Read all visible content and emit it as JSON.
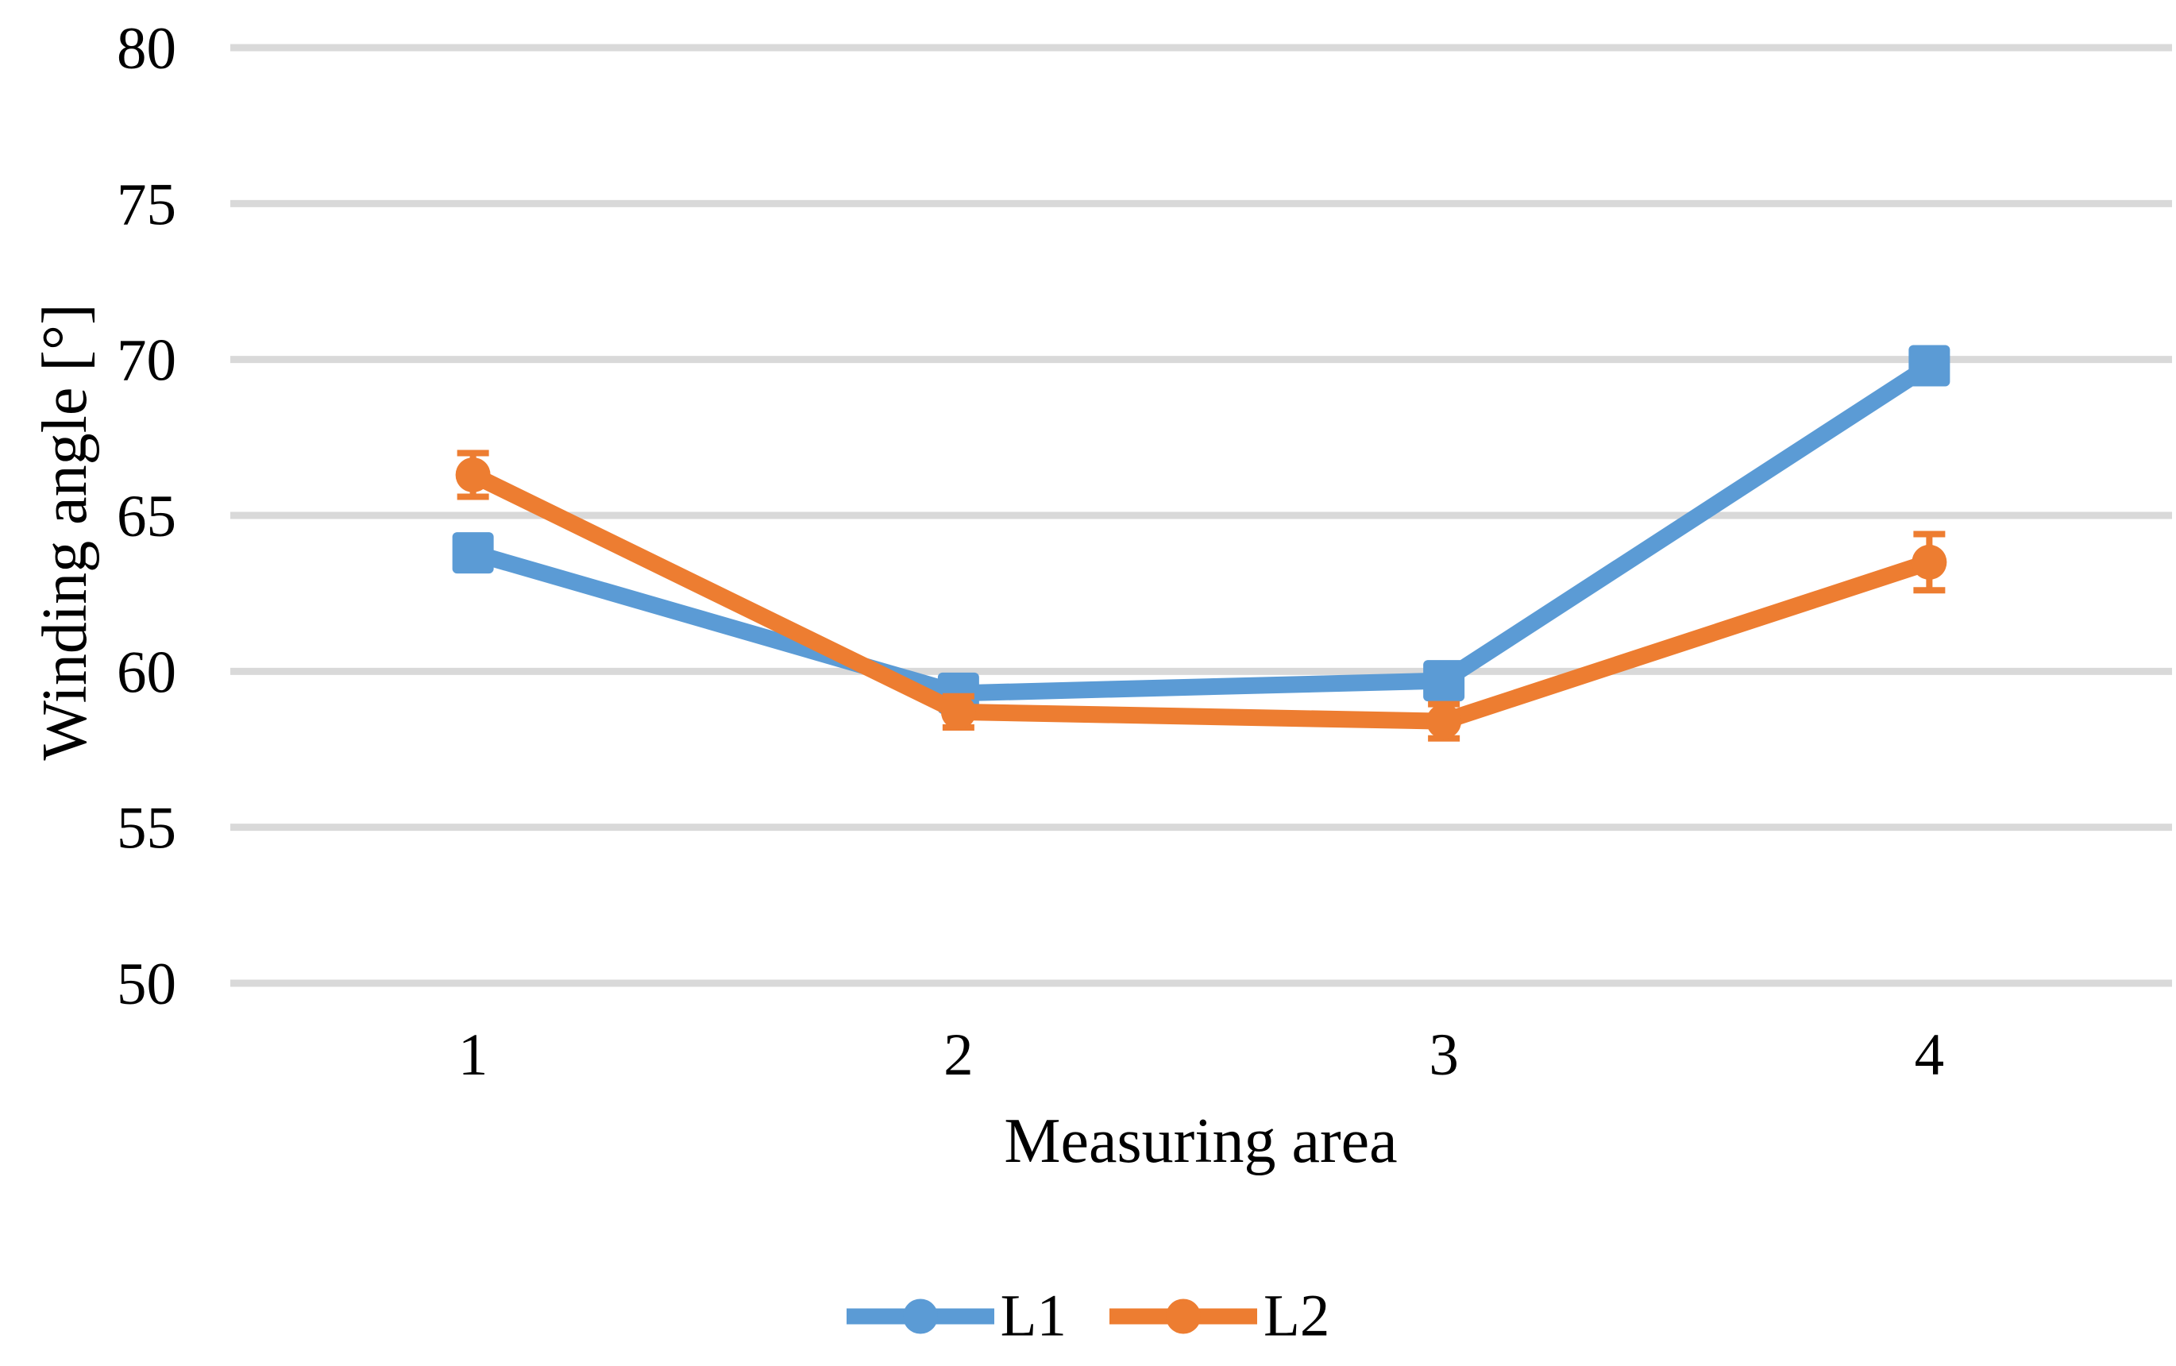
{
  "chart_data": {
    "type": "line",
    "title": "",
    "xlabel": "Measuring area",
    "ylabel": "Winding angle [°]",
    "categories": [
      "1",
      "2",
      "3",
      "4"
    ],
    "ylim": [
      50,
      80
    ],
    "yticks": [
      50,
      55,
      60,
      65,
      70,
      75,
      80
    ],
    "grid": "horizontal-only",
    "legend_position": "bottom-center",
    "background_color": "#ffffff",
    "gridline_color": "#d9d9d9",
    "text_color": "#000000",
    "series": [
      {
        "name": "L1",
        "color": "#5b9bd5",
        "marker": "square",
        "values": [
          63.8,
          59.3,
          59.7,
          69.8
        ],
        "errors": [
          0.25,
          0.25,
          0.25,
          0.3
        ]
      },
      {
        "name": "L2",
        "color": "#ed7d31",
        "marker": "circle",
        "values": [
          66.3,
          58.7,
          58.4,
          63.5
        ],
        "errors": [
          0.7,
          0.5,
          0.55,
          0.9
        ]
      }
    ]
  }
}
